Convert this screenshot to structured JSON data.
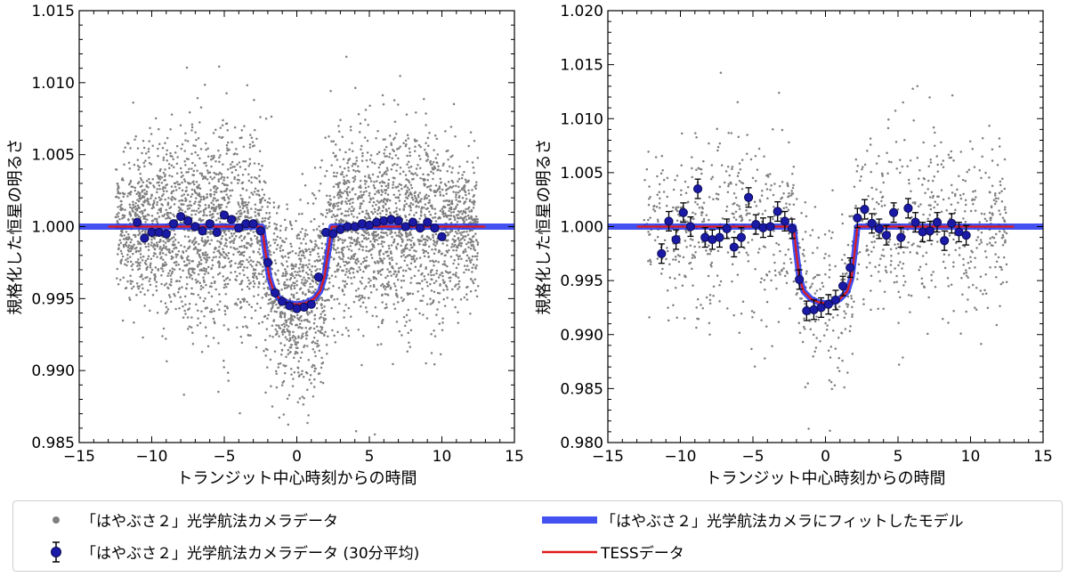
{
  "chart_data": [
    {
      "type": "scatter",
      "xlabel": "トランジット中心時刻からの時間",
      "ylabel": "規格化した恒星の明るさ",
      "xlim": [
        -15,
        15
      ],
      "ylim": [
        0.985,
        1.015
      ],
      "xticks": [
        "−15",
        "−10",
        "−5",
        "0",
        "5",
        "10",
        "15"
      ],
      "yticks": [
        "0.985",
        "0.990",
        "0.995",
        "1.000",
        "1.005",
        "1.010",
        "1.015"
      ],
      "grid": false,
      "model": {
        "name": "「はやぶさ２」光学航法カメラにフィットしたモデル",
        "color": "#2233ee",
        "x": [
          -15,
          -2.4,
          -2.2,
          -1.9,
          -1.6,
          -1.2,
          -0.6,
          0,
          0.6,
          1.2,
          1.6,
          1.9,
          2.2,
          2.4,
          15
        ],
        "y": [
          1.0,
          1.0,
          0.9985,
          0.9965,
          0.9955,
          0.995,
          0.9947,
          0.9946,
          0.9947,
          0.995,
          0.9955,
          0.9965,
          0.9985,
          1.0,
          1.0
        ]
      },
      "tess": {
        "name": "TESSデータ",
        "color": "#e01b1b",
        "x": [
          -13,
          -2.4,
          -2.2,
          -1.9,
          -1.6,
          -1.2,
          -0.6,
          0,
          0.6,
          1.2,
          1.6,
          1.9,
          2.2,
          2.4,
          13
        ],
        "y": [
          1.0,
          1.0,
          0.9985,
          0.9965,
          0.9955,
          0.995,
          0.9947,
          0.9946,
          0.9947,
          0.995,
          0.9955,
          0.9965,
          0.9985,
          1.0,
          1.0
        ]
      },
      "binned": {
        "name": "「はやぶさ２」光学航法カメラデータ (30分平均)",
        "x": [
          -11,
          -10.5,
          -10,
          -9.5,
          -9,
          -8.5,
          -8,
          -7.5,
          -7,
          -6.5,
          -6,
          -5.5,
          -5,
          -4.5,
          -4,
          -3.5,
          -3,
          -2.5,
          -2,
          -1.5,
          -1,
          -0.5,
          0,
          0.5,
          1,
          1.5,
          2,
          2.5,
          3,
          3.5,
          4,
          4.5,
          5,
          5.5,
          6,
          6.5,
          7,
          7.5,
          8,
          8.5,
          9,
          9.5,
          10
        ],
        "y": [
          1.0003,
          0.9992,
          0.9996,
          0.9996,
          0.9995,
          1.0002,
          1.0007,
          1.0004,
          1.0,
          0.9997,
          1.0002,
          0.9996,
          1.0008,
          1.0005,
          0.9999,
          1.0002,
          1.0002,
          0.9997,
          0.9975,
          0.9954,
          0.9948,
          0.9945,
          0.9943,
          0.9944,
          0.9946,
          0.9965,
          0.9996,
          0.9995,
          0.9998,
          1.0,
          1.0,
          1.0002,
          1.0001,
          1.0003,
          1.0004,
          1.0005,
          1.0004,
          1.0,
          1.0003,
          0.9999,
          1.0003,
          0.9999,
          0.9993
        ],
        "err": 0.0002
      },
      "scatter_sigma": 0.0048,
      "scatter_count": 4200,
      "scatter_xrange": [
        -12.5,
        12.5
      ]
    },
    {
      "type": "scatter",
      "xlabel": "トランジット中心時刻からの時間",
      "ylabel": "規格化した恒星の明るさ",
      "xlim": [
        -15,
        15
      ],
      "ylim": [
        0.98,
        1.02
      ],
      "xticks": [
        "−15",
        "−10",
        "−5",
        "0",
        "5",
        "10",
        "15"
      ],
      "yticks": [
        "0.980",
        "0.985",
        "0.990",
        "0.995",
        "1.000",
        "1.005",
        "1.010",
        "1.015",
        "1.020"
      ],
      "grid": false,
      "model": {
        "name": "「はやぶさ２」光学航法カメラにフィットしたモデル",
        "color": "#2233ee",
        "x": [
          -15,
          -2.2,
          -2.0,
          -1.8,
          -1.5,
          -1.0,
          -0.5,
          0,
          0.5,
          1.0,
          1.5,
          1.8,
          2.0,
          2.2,
          15
        ],
        "y": [
          1.0,
          1.0,
          0.9975,
          0.9953,
          0.994,
          0.9933,
          0.993,
          0.9929,
          0.993,
          0.9933,
          0.994,
          0.9953,
          0.9975,
          1.0,
          1.0
        ]
      },
      "tess": {
        "name": "TESSデータ",
        "color": "#e01b1b",
        "x": [
          -13,
          -2.2,
          -2.0,
          -1.8,
          -1.5,
          -1.0,
          -0.5,
          0,
          0.5,
          1.0,
          1.5,
          1.8,
          2.0,
          2.2,
          13
        ],
        "y": [
          1.0,
          1.0,
          0.9975,
          0.9953,
          0.994,
          0.9933,
          0.993,
          0.9929,
          0.993,
          0.9933,
          0.994,
          0.9953,
          0.9975,
          1.0,
          1.0
        ]
      },
      "binned": {
        "name": "「はやぶさ２」光学航法カメラデータ (30分平均)",
        "x": [
          -11.3,
          -10.8,
          -10.3,
          -9.8,
          -9.3,
          -8.8,
          -8.3,
          -7.8,
          -7.3,
          -6.8,
          -6.3,
          -5.8,
          -5.3,
          -4.8,
          -4.3,
          -3.8,
          -3.3,
          -2.8,
          -2.3,
          -1.8,
          -1.3,
          -0.8,
          -0.3,
          0.2,
          0.7,
          1.2,
          1.7,
          2.2,
          2.7,
          3.2,
          3.7,
          4.2,
          4.7,
          5.2,
          5.7,
          6.2,
          6.7,
          7.2,
          7.7,
          8.2,
          8.7,
          9.2,
          9.7
        ],
        "y": [
          0.9975,
          1.0005,
          0.9988,
          1.0013,
          1.0,
          1.0035,
          0.999,
          0.9988,
          0.999,
          0.9998,
          0.9981,
          0.999,
          1.0027,
          1.0002,
          0.9999,
          1.0,
          1.0014,
          1.0005,
          0.9998,
          0.9951,
          0.9922,
          0.9923,
          0.9925,
          0.9928,
          0.9932,
          0.9945,
          0.9962,
          1.0008,
          1.0016,
          1.0003,
          0.9998,
          0.9992,
          1.0013,
          0.999,
          1.0017,
          1.0004,
          0.9995,
          0.9996,
          1.0004,
          0.9987,
          1.0003,
          0.9995,
          0.9992
        ],
        "err": 0.0009
      },
      "scatter_sigma": 0.0065,
      "scatter_count": 1100,
      "scatter_xrange": [
        -12.5,
        12.5
      ]
    }
  ],
  "legend": {
    "scatter_label": "「はやぶさ２」光学航法カメラデータ",
    "binned_label": "「はやぶさ２」光学航法カメラデータ (30分平均)",
    "model_label": "「はやぶさ２」光学航法カメラにフィットしたモデル",
    "tess_label": "TESSデータ"
  },
  "colors": {
    "scatter": "#7f7f7f",
    "binned_fill": "#1a1aa6",
    "binned_edge": "#0b0b55",
    "model": "#2233ee",
    "tess": "#e01b1b"
  }
}
